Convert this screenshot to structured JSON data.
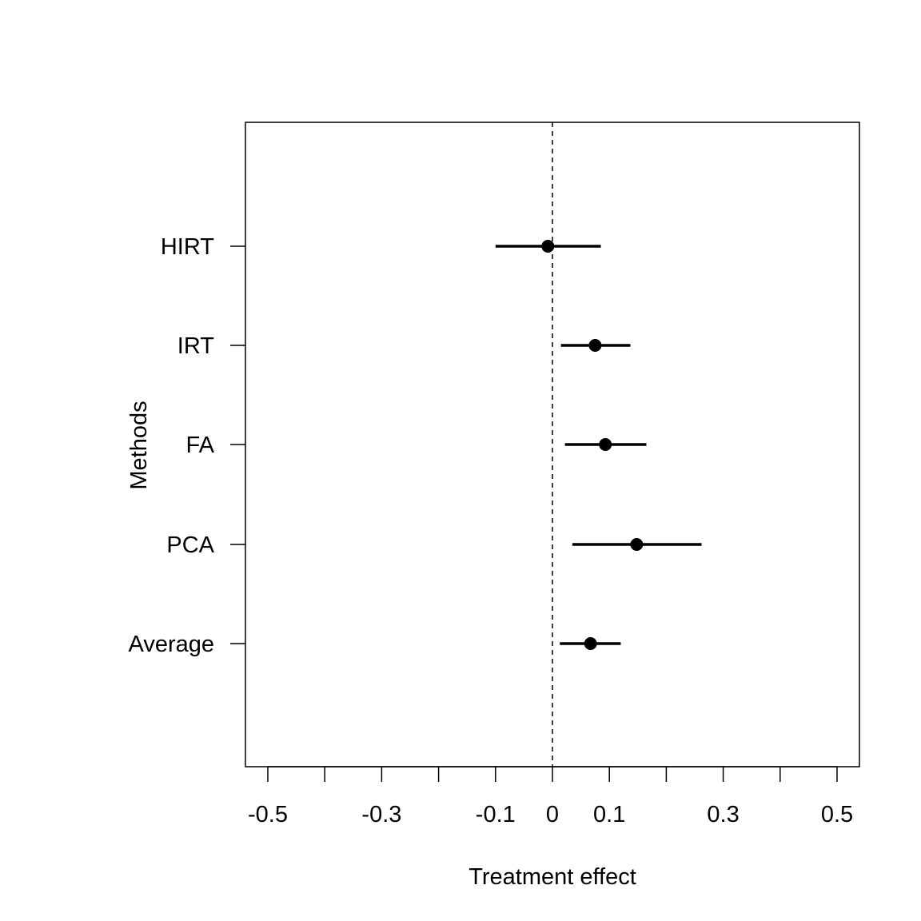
{
  "chart_data": {
    "type": "scatter",
    "subtype": "forest-plot",
    "title": "",
    "xlabel": "Treatment effect",
    "ylabel": "Methods",
    "xlim": [
      -0.54,
      0.54
    ],
    "x_ticks": [
      -0.5,
      -0.4,
      -0.3,
      -0.2,
      -0.1,
      0,
      0.1,
      0.2,
      0.3,
      0.4,
      0.5
    ],
    "x_tick_labels": [
      {
        "value": -0.5,
        "label": "-0.5"
      },
      {
        "value": -0.3,
        "label": "-0.3"
      },
      {
        "value": -0.1,
        "label": "-0.1"
      },
      {
        "value": 0,
        "label": "0"
      },
      {
        "value": 0.1,
        "label": "0.1"
      },
      {
        "value": 0.3,
        "label": "0.3"
      },
      {
        "value": 0.5,
        "label": "0.5"
      }
    ],
    "reference_line": {
      "x": 0,
      "style": "dashed"
    },
    "grid": false,
    "legend": "none",
    "categories": [
      "HIRT",
      "IRT",
      "FA",
      "PCA",
      "Average"
    ],
    "estimates": [
      {
        "label": "HIRT",
        "value": -0.008,
        "lower": -0.1,
        "upper": 0.085
      },
      {
        "label": "IRT",
        "value": 0.075,
        "lower": 0.015,
        "upper": 0.137
      },
      {
        "label": "FA",
        "value": 0.093,
        "lower": 0.022,
        "upper": 0.165
      },
      {
        "label": "PCA",
        "value": 0.148,
        "lower": 0.035,
        "upper": 0.262
      },
      {
        "label": "Average",
        "value": 0.067,
        "lower": 0.013,
        "upper": 0.12
      }
    ],
    "colors": {
      "points": "#000000",
      "lines": "#000000"
    }
  }
}
